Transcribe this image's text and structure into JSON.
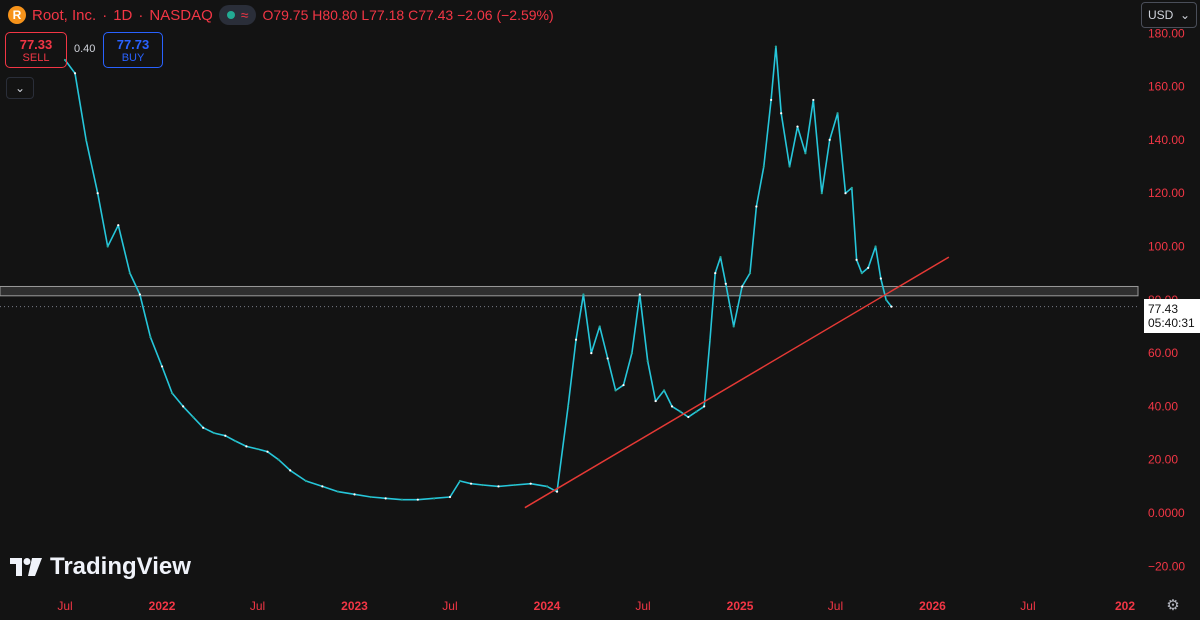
{
  "header": {
    "logo_letter": "R",
    "symbol": "Root, Inc.",
    "separator": "·",
    "interval": "1D",
    "exchange": "NASDAQ",
    "ohlc": {
      "o_label": "O",
      "o": "79.75",
      "h_label": "H",
      "h": "80.80",
      "l_label": "L",
      "l": "77.18",
      "c_label": "C",
      "c": "77.43",
      "change": "−2.06 (−2.59%)"
    }
  },
  "trade": {
    "sell_price": "77.33",
    "sell_label": "SELL",
    "spread": "0.40",
    "buy_price": "77.73",
    "buy_label": "BUY"
  },
  "currency": "USD",
  "brand": "TradingView",
  "last_price": {
    "value": "77.43",
    "countdown": "05:40:31"
  },
  "colors": {
    "background": "#131313",
    "line": "#26c6da",
    "up": "#26a69a",
    "down": "#ffffff",
    "trendline": "#e53935",
    "axis_text": "#f23645"
  },
  "chart_data": {
    "type": "line",
    "title": "",
    "xlabel": "",
    "ylabel": "",
    "y_axis": {
      "ticks": [
        180,
        160,
        140,
        120,
        100,
        80,
        60,
        40,
        20,
        0,
        -20
      ],
      "tick_labels": [
        "180.00",
        "160.00",
        "140.00",
        "120.00",
        "100.00",
        "80.00",
        "60.00",
        "40.00",
        "20.00",
        "0.0000",
        "−20.00"
      ],
      "ylim": [
        -20,
        180
      ]
    },
    "x_axis": {
      "tick_labels": [
        "Jul",
        "2022",
        "Jul",
        "2023",
        "Jul",
        "2024",
        "Jul",
        "2025",
        "Jul",
        "2026",
        "Jul",
        "202"
      ],
      "tick_dates": [
        "2021-07-01",
        "2022-01-01",
        "2022-07-01",
        "2023-01-01",
        "2023-07-01",
        "2024-01-01",
        "2024-07-01",
        "2025-01-01",
        "2025-07-01",
        "2026-01-01",
        "2026-07-01",
        "2027-01-01"
      ]
    },
    "grid": false,
    "series": [
      {
        "x": [
          "2021-07-01",
          "2021-07-20",
          "2021-08-10",
          "2021-09-01",
          "2021-09-20",
          "2021-10-10",
          "2021-11-01",
          "2021-11-20",
          "2021-12-10",
          "2022-01-01",
          "2022-01-20",
          "2022-02-10",
          "2022-03-01",
          "2022-03-20",
          "2022-04-10",
          "2022-05-01",
          "2022-05-20",
          "2022-06-10",
          "2022-07-01",
          "2022-07-20",
          "2022-08-10",
          "2022-09-01",
          "2022-10-01",
          "2022-11-01",
          "2022-12-01",
          "2023-01-01",
          "2023-02-01",
          "2023-03-01",
          "2023-04-01",
          "2023-05-01",
          "2023-06-01",
          "2023-07-01",
          "2023-07-20",
          "2023-08-10",
          "2023-09-01",
          "2023-10-01",
          "2023-11-01",
          "2023-12-01",
          "2024-01-01",
          "2024-01-20",
          "2024-02-10",
          "2024-02-25",
          "2024-03-10",
          "2024-03-25",
          "2024-04-10",
          "2024-04-25",
          "2024-05-10",
          "2024-05-25",
          "2024-06-10",
          "2024-06-25",
          "2024-07-10",
          "2024-07-25",
          "2024-08-10",
          "2024-08-25",
          "2024-09-10",
          "2024-09-25",
          "2024-10-10",
          "2024-10-25",
          "2024-11-05",
          "2024-11-15",
          "2024-11-25",
          "2024-12-05",
          "2024-12-20",
          "2025-01-05",
          "2025-01-20",
          "2025-02-01",
          "2025-02-15",
          "2025-03-01",
          "2025-03-10",
          "2025-03-20",
          "2025-04-05",
          "2025-04-20",
          "2025-05-05",
          "2025-05-20",
          "2025-06-05",
          "2025-06-20",
          "2025-07-05",
          "2025-07-20",
          "2025-08-01",
          "2025-08-10",
          "2025-08-20",
          "2025-09-01",
          "2025-09-15",
          "2025-09-25",
          "2025-10-05",
          "2025-10-15"
        ],
        "values": [
          170,
          165,
          140,
          120,
          100,
          108,
          90,
          82,
          66,
          55,
          45,
          40,
          36,
          32,
          30,
          29,
          27,
          25,
          24,
          23,
          20,
          16,
          12,
          10,
          8,
          7,
          6,
          5.5,
          5,
          5,
          5.5,
          6,
          12,
          11,
          10.5,
          10,
          10.5,
          11,
          10,
          8,
          40,
          65,
          82,
          60,
          70,
          58,
          46,
          48,
          60,
          82,
          57,
          42,
          46,
          40,
          38,
          36,
          38,
          40,
          65,
          90,
          96,
          86,
          70,
          85,
          90,
          115,
          130,
          155,
          175,
          150,
          130,
          145,
          135,
          155,
          120,
          140,
          150,
          120,
          122,
          95,
          90,
          92,
          100,
          88,
          80,
          77.43
        ]
      }
    ],
    "trendline": {
      "x": [
        "2023-11-20",
        "2026-02-01"
      ],
      "y": [
        2,
        96
      ]
    },
    "horizontal_band": {
      "from": 81.5,
      "to": 85
    },
    "last_value": 77.43
  }
}
